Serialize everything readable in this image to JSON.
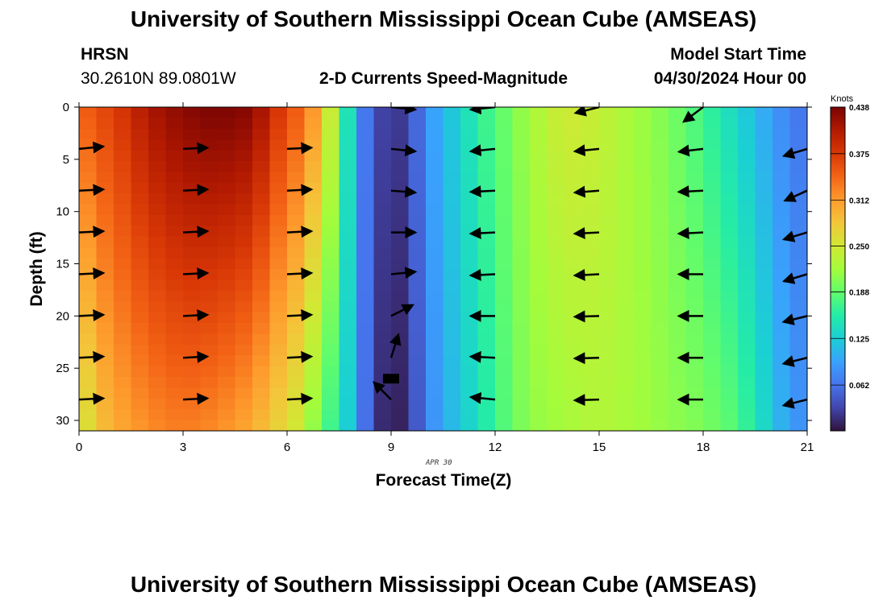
{
  "header": {
    "title_top": "University of Southern Mississippi Ocean Cube (AMSEAS)",
    "title_bottom": "University of Southern Mississippi Ocean Cube (AMSEAS)",
    "station": "HRSN",
    "coords": "30.2610N  89.0801W",
    "subtitle": "2-D Currents Speed-Magnitude",
    "model_label": "Model Start Time",
    "model_time": "04/30/2024 Hour 00",
    "date_label": "APR 30"
  },
  "chart_data": {
    "type": "heatmap",
    "title": "2-D Currents Speed-Magnitude",
    "xlabel": "Forecast Time(Z)",
    "ylabel": "Depth (ft)",
    "xlim": [
      0,
      21
    ],
    "ylim": [
      31,
      0
    ],
    "xticks": [
      0,
      3,
      6,
      9,
      12,
      15,
      18,
      21
    ],
    "yticks": [
      0,
      5,
      10,
      15,
      20,
      25,
      30
    ],
    "colorbar": {
      "label": "Knots",
      "min": 0.0,
      "max": 0.438,
      "ticks": [
        0.438,
        0.375,
        0.312,
        0.25,
        0.188,
        0.125,
        0.062
      ],
      "colors": [
        "#30123b",
        "#4145ab",
        "#4675ed",
        "#39a2fc",
        "#1bcfd4",
        "#24eca6",
        "#61fc6c",
        "#a4fc3b",
        "#d1e834",
        "#f3c63a",
        "#fe9b2d",
        "#f36315",
        "#d93806",
        "#b11901",
        "#7a0403"
      ]
    },
    "speed_by_hour": [
      {
        "x": 0.0,
        "top": 0.34,
        "bottom": 0.24
      },
      {
        "x": 0.5,
        "top": 0.36,
        "bottom": 0.28
      },
      {
        "x": 1.0,
        "top": 0.37,
        "bottom": 0.3
      },
      {
        "x": 2.0,
        "top": 0.41,
        "bottom": 0.32
      },
      {
        "x": 3.0,
        "top": 0.43,
        "bottom": 0.33
      },
      {
        "x": 4.0,
        "top": 0.438,
        "bottom": 0.32
      },
      {
        "x": 5.0,
        "top": 0.43,
        "bottom": 0.3
      },
      {
        "x": 6.0,
        "top": 0.36,
        "bottom": 0.26
      },
      {
        "x": 6.5,
        "top": 0.34,
        "bottom": 0.24
      },
      {
        "x": 7.0,
        "top": 0.29,
        "bottom": 0.18
      },
      {
        "x": 7.5,
        "top": 0.2,
        "bottom": 0.16
      },
      {
        "x": 8.0,
        "top": 0.09,
        "bottom": 0.09
      },
      {
        "x": 8.5,
        "top": 0.04,
        "bottom": 0.03
      },
      {
        "x": 9.0,
        "top": 0.02,
        "bottom": 0.0
      },
      {
        "x": 9.5,
        "top": 0.03,
        "bottom": 0.02
      },
      {
        "x": 10.0,
        "top": 0.08,
        "bottom": 0.07
      },
      {
        "x": 10.5,
        "top": 0.11,
        "bottom": 0.1
      },
      {
        "x": 11.0,
        "top": 0.13,
        "bottom": 0.12
      },
      {
        "x": 11.5,
        "top": 0.16,
        "bottom": 0.14
      },
      {
        "x": 12.0,
        "top": 0.18,
        "bottom": 0.17
      },
      {
        "x": 13.0,
        "top": 0.22,
        "bottom": 0.21
      },
      {
        "x": 14.0,
        "top": 0.25,
        "bottom": 0.22
      },
      {
        "x": 15.0,
        "top": 0.24,
        "bottom": 0.23
      },
      {
        "x": 16.0,
        "top": 0.22,
        "bottom": 0.22
      },
      {
        "x": 17.0,
        "top": 0.2,
        "bottom": 0.21
      },
      {
        "x": 18.0,
        "top": 0.17,
        "bottom": 0.2
      },
      {
        "x": 19.0,
        "top": 0.13,
        "bottom": 0.18
      },
      {
        "x": 19.5,
        "top": 0.11,
        "bottom": 0.15
      },
      {
        "x": 20.0,
        "top": 0.09,
        "bottom": 0.12
      },
      {
        "x": 20.5,
        "top": 0.07,
        "bottom": 0.09
      },
      {
        "x": 21.0,
        "top": 0.06,
        "bottom": 0.08
      }
    ],
    "vectors": [
      {
        "x": 0,
        "depth": 4,
        "u": 1,
        "v": 0.1
      },
      {
        "x": 0,
        "depth": 8,
        "u": 1,
        "v": 0.05
      },
      {
        "x": 0,
        "depth": 12,
        "u": 1,
        "v": 0.05
      },
      {
        "x": 0,
        "depth": 16,
        "u": 1,
        "v": 0.05
      },
      {
        "x": 0,
        "depth": 20,
        "u": 1,
        "v": 0.05
      },
      {
        "x": 0,
        "depth": 24,
        "u": 1,
        "v": 0.05
      },
      {
        "x": 0,
        "depth": 28,
        "u": 1,
        "v": 0.05
      },
      {
        "x": 3,
        "depth": 4,
        "u": 1,
        "v": 0.05
      },
      {
        "x": 3,
        "depth": 8,
        "u": 1,
        "v": 0.05
      },
      {
        "x": 3,
        "depth": 12,
        "u": 1,
        "v": 0.05
      },
      {
        "x": 3,
        "depth": 16,
        "u": 1,
        "v": 0.05
      },
      {
        "x": 3,
        "depth": 20,
        "u": 1,
        "v": 0.05
      },
      {
        "x": 3,
        "depth": 24,
        "u": 1,
        "v": 0.05
      },
      {
        "x": 3,
        "depth": 28,
        "u": 1,
        "v": 0.05
      },
      {
        "x": 6,
        "depth": 4,
        "u": 1,
        "v": 0.05
      },
      {
        "x": 6,
        "depth": 8,
        "u": 1,
        "v": 0.05
      },
      {
        "x": 6,
        "depth": 12,
        "u": 1,
        "v": 0.05
      },
      {
        "x": 6,
        "depth": 16,
        "u": 1,
        "v": 0.05
      },
      {
        "x": 6,
        "depth": 20,
        "u": 1,
        "v": 0.05
      },
      {
        "x": 6,
        "depth": 24,
        "u": 1,
        "v": 0.05
      },
      {
        "x": 6,
        "depth": 28,
        "u": 1,
        "v": 0.05
      },
      {
        "x": 9,
        "depth": 0,
        "u": 1,
        "v": -0.1
      },
      {
        "x": 9,
        "depth": 4,
        "u": 1,
        "v": -0.1
      },
      {
        "x": 9,
        "depth": 8,
        "u": 1,
        "v": -0.08
      },
      {
        "x": 9,
        "depth": 12,
        "u": 1,
        "v": 0.0
      },
      {
        "x": 9,
        "depth": 16,
        "u": 1,
        "v": 0.1
      },
      {
        "x": 9,
        "depth": 20,
        "u": 0.9,
        "v": 0.45
      },
      {
        "x": 9,
        "depth": 24,
        "u": 0.3,
        "v": 0.95
      },
      {
        "x": 9,
        "depth": 28,
        "u": -0.7,
        "v": 0.7
      },
      {
        "x": 12,
        "depth": 0,
        "u": -1,
        "v": -0.1
      },
      {
        "x": 12,
        "depth": 4,
        "u": -1,
        "v": -0.1
      },
      {
        "x": 12,
        "depth": 8,
        "u": -1,
        "v": -0.05
      },
      {
        "x": 12,
        "depth": 12,
        "u": -1,
        "v": -0.05
      },
      {
        "x": 12,
        "depth": 16,
        "u": -1,
        "v": -0.05
      },
      {
        "x": 12,
        "depth": 20,
        "u": -1,
        "v": 0.0
      },
      {
        "x": 12,
        "depth": 24,
        "u": -1,
        "v": 0.05
      },
      {
        "x": 12,
        "depth": 28,
        "u": -1,
        "v": 0.1
      },
      {
        "x": 15,
        "depth": 0,
        "u": -1,
        "v": -0.25
      },
      {
        "x": 15,
        "depth": 4,
        "u": -1,
        "v": -0.1
      },
      {
        "x": 15,
        "depth": 8,
        "u": -1,
        "v": -0.08
      },
      {
        "x": 15,
        "depth": 12,
        "u": -1,
        "v": -0.05
      },
      {
        "x": 15,
        "depth": 16,
        "u": -1,
        "v": -0.05
      },
      {
        "x": 15,
        "depth": 20,
        "u": -1,
        "v": -0.03
      },
      {
        "x": 15,
        "depth": 24,
        "u": -1,
        "v": -0.03
      },
      {
        "x": 15,
        "depth": 28,
        "u": -1,
        "v": -0.03
      },
      {
        "x": 18,
        "depth": 0,
        "u": -0.8,
        "v": -0.6
      },
      {
        "x": 18,
        "depth": 4,
        "u": -1,
        "v": -0.12
      },
      {
        "x": 18,
        "depth": 8,
        "u": -1,
        "v": -0.05
      },
      {
        "x": 18,
        "depth": 12,
        "u": -1,
        "v": -0.05
      },
      {
        "x": 18,
        "depth": 16,
        "u": -1,
        "v": 0.0
      },
      {
        "x": 18,
        "depth": 20,
        "u": -1,
        "v": 0.0
      },
      {
        "x": 18,
        "depth": 24,
        "u": -1,
        "v": 0.0
      },
      {
        "x": 18,
        "depth": 28,
        "u": -1,
        "v": 0.0
      },
      {
        "x": 21,
        "depth": 4,
        "u": -1,
        "v": -0.3
      },
      {
        "x": 21,
        "depth": 8,
        "u": -1,
        "v": -0.45
      },
      {
        "x": 21,
        "depth": 12,
        "u": -1,
        "v": -0.3
      },
      {
        "x": 21,
        "depth": 16,
        "u": -1,
        "v": -0.3
      },
      {
        "x": 21,
        "depth": 20,
        "u": -1,
        "v": -0.25
      },
      {
        "x": 21,
        "depth": 24,
        "u": -1,
        "v": -0.25
      },
      {
        "x": 21,
        "depth": 28,
        "u": -1,
        "v": -0.25
      }
    ],
    "marker": {
      "x": 9,
      "depth": 26,
      "label": "bottom-marker"
    }
  }
}
